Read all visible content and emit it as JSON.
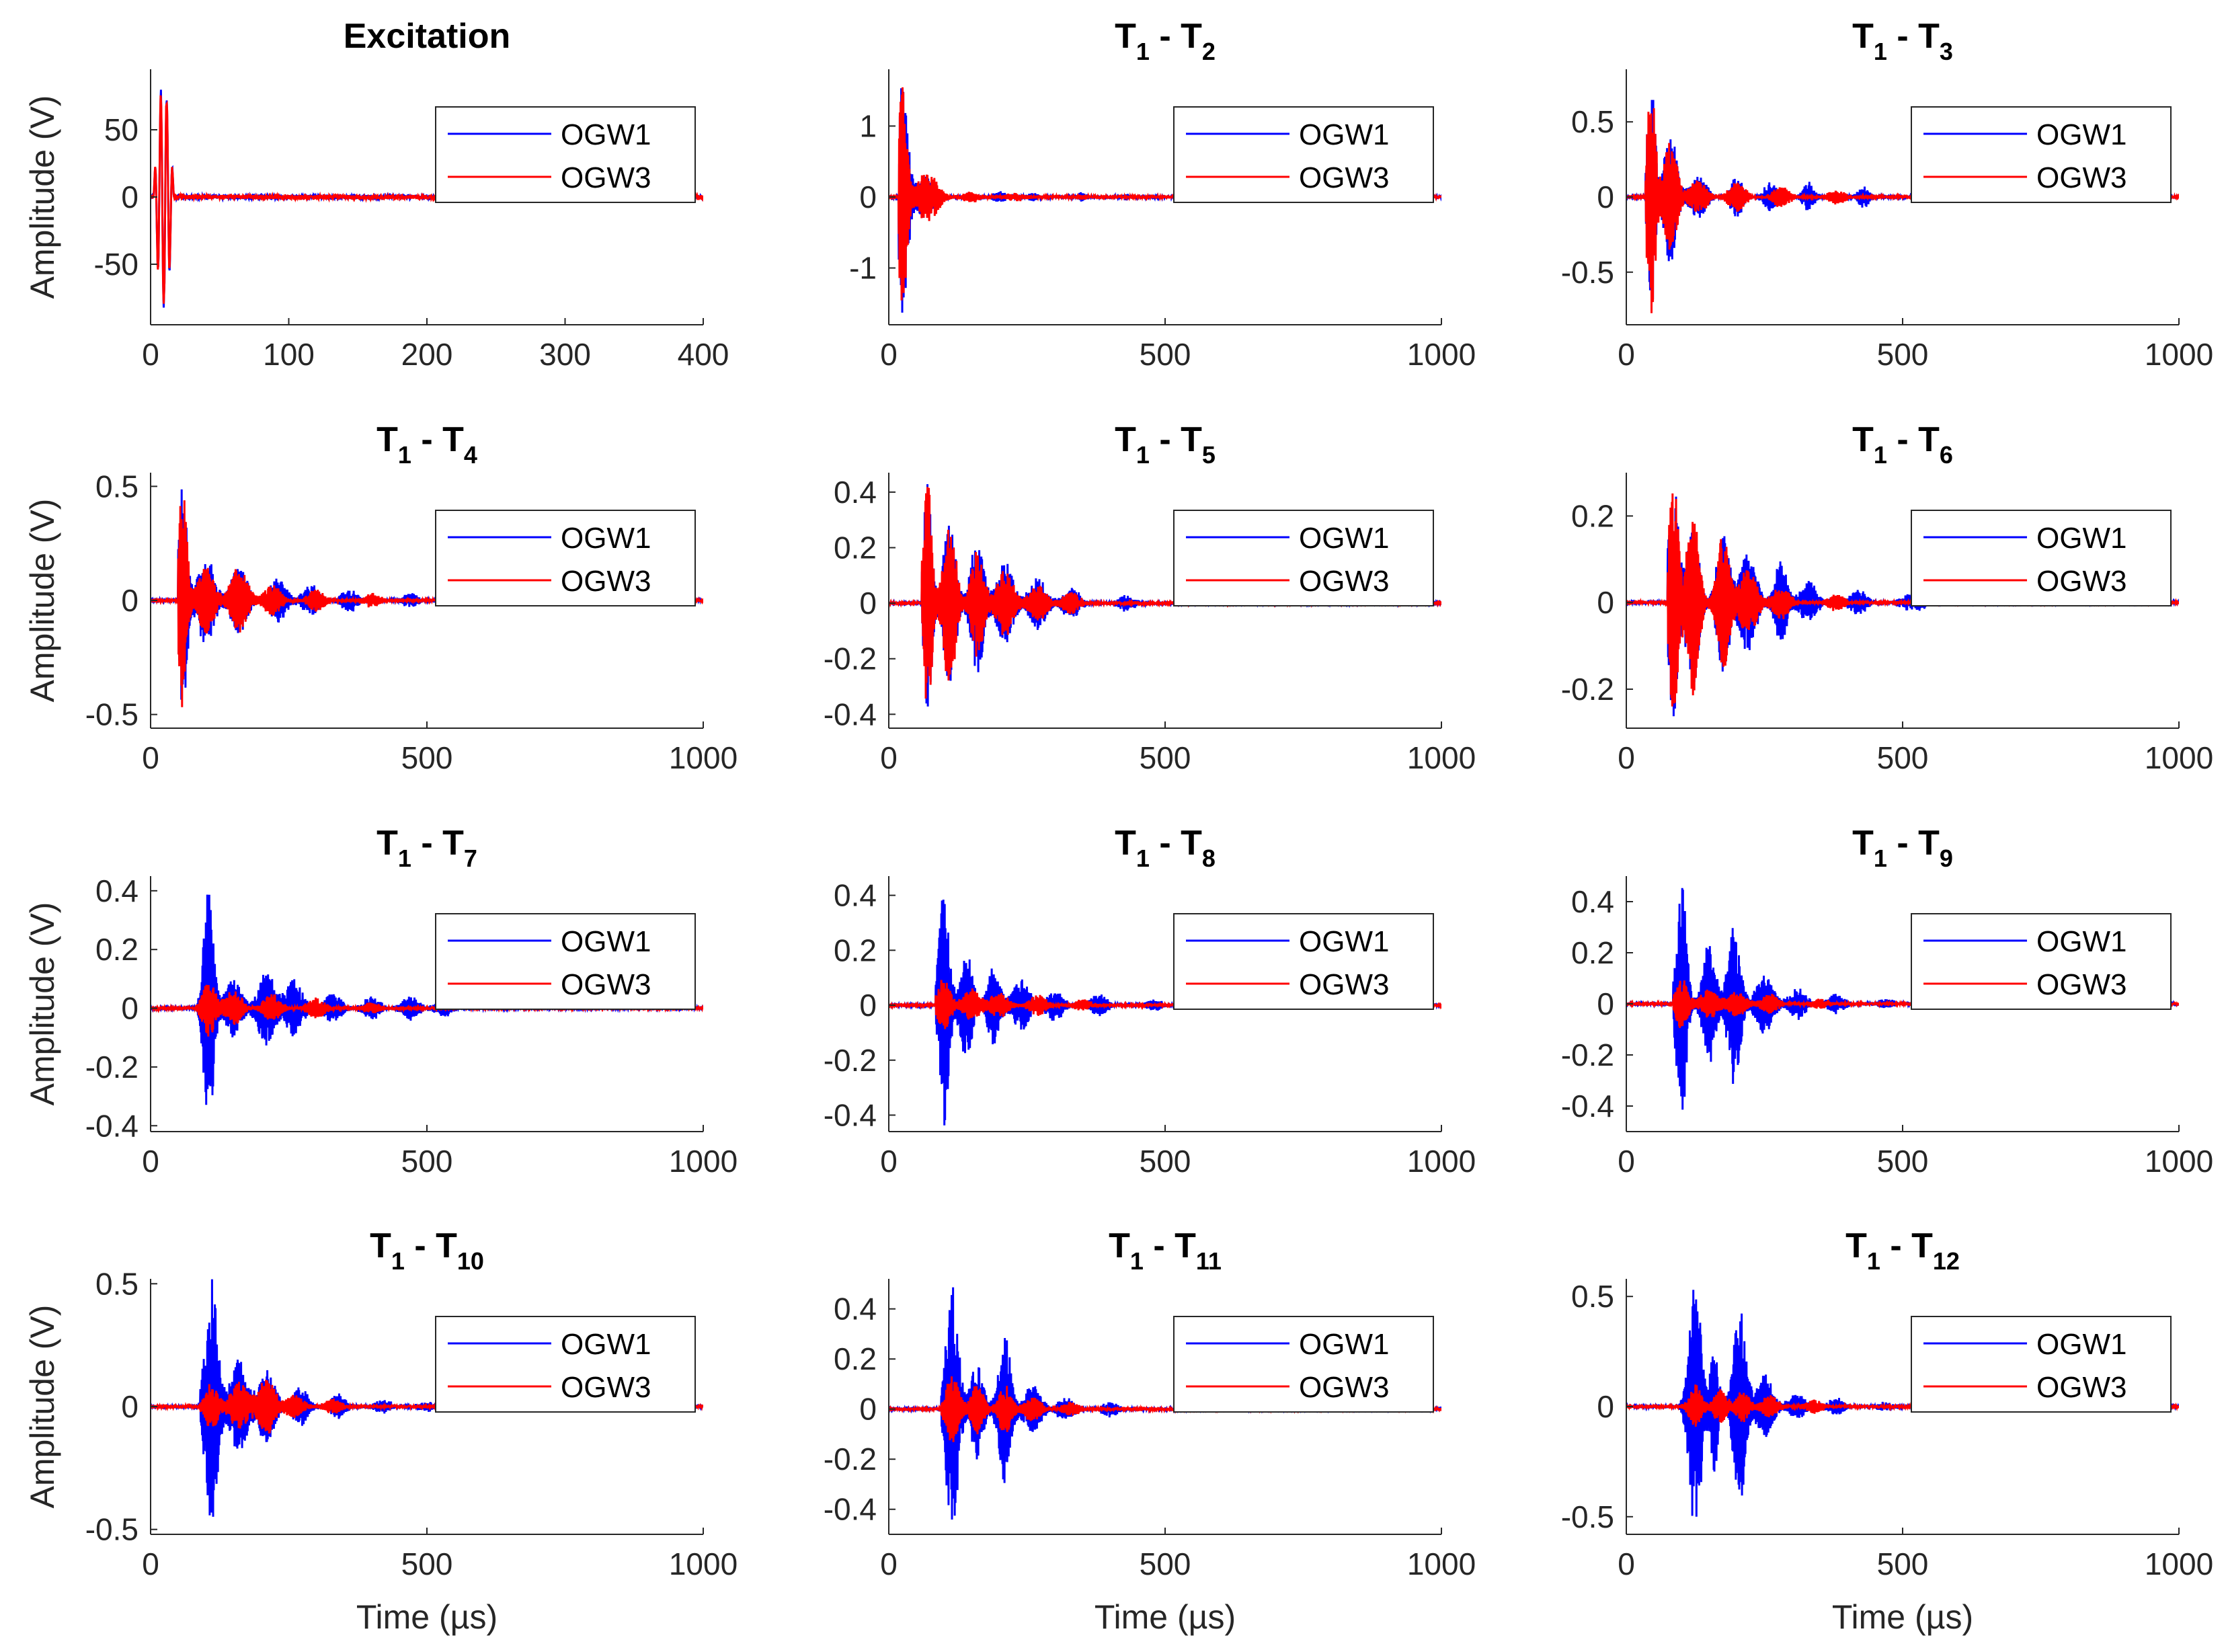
{
  "figure": {
    "rows": 4,
    "cols": 3,
    "ylabel": "Amplitude (V)",
    "xlabel": "Time (µs)",
    "legend": {
      "placement": "top-right",
      "entries": [
        "OGW1",
        "OGW3"
      ]
    },
    "colors": {
      "OGW1": "#0000ff",
      "OGW3": "#ff0000",
      "axes": "#262626"
    }
  },
  "chart_data": [
    {
      "type": "line",
      "title": "Excitation",
      "title_sub": "",
      "title_parts": [],
      "xlim": [
        0,
        400
      ],
      "ylim": [
        -95,
        95
      ],
      "xticks": [
        0,
        100,
        200,
        300,
        400
      ],
      "yticks": [
        50,
        0,
        -50
      ],
      "xtick_labels": [
        "0",
        "100",
        "200",
        "300",
        "400"
      ],
      "ytick_labels": [
        "50",
        "0",
        "-50"
      ],
      "envelope": {
        "kind": "excitation",
        "t0": 2,
        "dur": 15,
        "amp": 90,
        "noise": 1.5
      }
    },
    {
      "type": "line",
      "title": "",
      "title_parts": [
        "T",
        "1",
        " - T",
        "2"
      ],
      "xlim": [
        0,
        1000
      ],
      "ylim": [
        -1.8,
        1.8
      ],
      "xticks": [
        0,
        500,
        1000
      ],
      "yticks": [
        1,
        0,
        -1
      ],
      "xtick_labels": [
        "0",
        "500",
        "1000"
      ],
      "ytick_labels": [
        "1",
        "0",
        "-1"
      ],
      "envelope": {
        "t0": 18,
        "OGW1": [
          [
            25,
            1.65,
            12
          ],
          [
            65,
            0.3,
            25
          ],
          [
            200,
            0.08,
            15
          ],
          [
            260,
            0.06,
            12
          ],
          [
            350,
            0.06,
            10
          ],
          [
            430,
            0.04,
            15
          ]
        ],
        "OGW3": [
          [
            25,
            1.6,
            10
          ],
          [
            70,
            0.35,
            25
          ],
          [
            150,
            0.08,
            20
          ],
          [
            230,
            0.05,
            25
          ],
          [
            350,
            0.03,
            15
          ]
        ]
      }
    },
    {
      "type": "line",
      "title": "",
      "title_parts": [
        "T",
        "1",
        " - T",
        "3"
      ],
      "xlim": [
        0,
        1000
      ],
      "ylim": [
        -0.85,
        0.85
      ],
      "xticks": [
        0,
        500,
        1000
      ],
      "yticks": [
        0.5,
        0,
        -0.5
      ],
      "xtick_labels": [
        "0",
        "500",
        "1000"
      ],
      "ytick_labels": [
        "0.5",
        "0",
        "-0.5"
      ],
      "envelope": {
        "t0": 35,
        "OGW1": [
          [
            45,
            0.8,
            10
          ],
          [
            80,
            0.45,
            15
          ],
          [
            130,
            0.15,
            20
          ],
          [
            200,
            0.14,
            15
          ],
          [
            260,
            0.1,
            15
          ],
          [
            330,
            0.1,
            15
          ],
          [
            430,
            0.07,
            15
          ]
        ],
        "OGW3": [
          [
            45,
            0.8,
            10
          ],
          [
            80,
            0.4,
            15
          ],
          [
            130,
            0.12,
            20
          ],
          [
            200,
            0.1,
            20
          ],
          [
            280,
            0.07,
            20
          ],
          [
            380,
            0.05,
            20
          ]
        ]
      }
    },
    {
      "type": "line",
      "title": "",
      "title_parts": [
        "T",
        "1",
        " - T",
        "4"
      ],
      "xlim": [
        0,
        1000
      ],
      "ylim": [
        -0.56,
        0.56
      ],
      "xticks": [
        0,
        500,
        1000
      ],
      "yticks": [
        0.5,
        0,
        -0.5
      ],
      "xtick_labels": [
        "0",
        "500",
        "1000"
      ],
      "ytick_labels": [
        "0.5",
        "0",
        "-0.5"
      ],
      "envelope": {
        "t0": 50,
        "OGW1": [
          [
            58,
            0.55,
            10
          ],
          [
            100,
            0.2,
            20
          ],
          [
            160,
            0.15,
            20
          ],
          [
            230,
            0.1,
            20
          ],
          [
            290,
            0.07,
            20
          ],
          [
            360,
            0.05,
            20
          ],
          [
            470,
            0.03,
            20
          ]
        ],
        "OGW3": [
          [
            58,
            0.5,
            10
          ],
          [
            100,
            0.15,
            20
          ],
          [
            160,
            0.15,
            20
          ],
          [
            220,
            0.07,
            20
          ],
          [
            300,
            0.05,
            20
          ],
          [
            400,
            0.03,
            20
          ]
        ]
      }
    },
    {
      "type": "line",
      "title": "",
      "title_parts": [
        "T",
        "1",
        " - T",
        "5"
      ],
      "xlim": [
        0,
        1000
      ],
      "ylim": [
        -0.45,
        0.47
      ],
      "xticks": [
        0,
        500,
        1000
      ],
      "yticks": [
        0.4,
        0.2,
        0,
        -0.2,
        -0.4
      ],
      "xtick_labels": [
        "0",
        "500",
        "1000"
      ],
      "ytick_labels": [
        "0.4",
        "0.2",
        "0",
        "-0.2",
        "-0.4"
      ],
      "envelope": {
        "t0": 60,
        "OGW1": [
          [
            70,
            0.45,
            10
          ],
          [
            110,
            0.3,
            15
          ],
          [
            160,
            0.26,
            15
          ],
          [
            210,
            0.15,
            20
          ],
          [
            270,
            0.1,
            20
          ],
          [
            330,
            0.06,
            20
          ],
          [
            430,
            0.03,
            20
          ]
        ],
        "OGW3": [
          [
            70,
            0.46,
            10
          ],
          [
            110,
            0.3,
            15
          ],
          [
            160,
            0.2,
            15
          ],
          [
            210,
            0.12,
            20
          ],
          [
            270,
            0.07,
            20
          ],
          [
            330,
            0.04,
            20
          ]
        ]
      }
    },
    {
      "type": "line",
      "title": "",
      "title_parts": [
        "T",
        "1",
        " - T",
        "6"
      ],
      "xlim": [
        0,
        1000
      ],
      "ylim": [
        -0.29,
        0.3
      ],
      "xticks": [
        0,
        500,
        1000
      ],
      "yticks": [
        0.2,
        0,
        -0.2
      ],
      "xtick_labels": [
        "0",
        "500",
        "1000"
      ],
      "ytick_labels": [
        "0.2",
        "0",
        "-0.2"
      ],
      "envelope": {
        "t0": 75,
        "OGW1": [
          [
            85,
            0.29,
            12
          ],
          [
            120,
            0.2,
            15
          ],
          [
            175,
            0.17,
            15
          ],
          [
            220,
            0.12,
            20
          ],
          [
            280,
            0.1,
            15
          ],
          [
            330,
            0.05,
            20
          ],
          [
            420,
            0.03,
            20
          ],
          [
            520,
            0.02,
            30
          ]
        ],
        "OGW3": [
          [
            85,
            0.28,
            12
          ],
          [
            120,
            0.22,
            15
          ],
          [
            175,
            0.16,
            15
          ],
          [
            220,
            0.08,
            20
          ],
          [
            280,
            0.04,
            20
          ],
          [
            380,
            0.02,
            20
          ]
        ]
      }
    },
    {
      "type": "line",
      "title": "",
      "title_parts": [
        "T",
        "1",
        " - T",
        "7"
      ],
      "xlim": [
        0,
        1000
      ],
      "ylim": [
        -0.42,
        0.45
      ],
      "xticks": [
        0,
        500,
        1000
      ],
      "yticks": [
        0.4,
        0.2,
        0,
        -0.2,
        -0.4
      ],
      "xtick_labels": [
        "0",
        "500",
        "1000"
      ],
      "ytick_labels": [
        "0.4",
        "0.2",
        "0",
        "-0.2",
        "-0.4"
      ],
      "envelope": {
        "t0": 85,
        "OGW1": [
          [
            105,
            0.42,
            12
          ],
          [
            150,
            0.1,
            20
          ],
          [
            210,
            0.13,
            20
          ],
          [
            260,
            0.1,
            20
          ],
          [
            330,
            0.05,
            20
          ],
          [
            400,
            0.04,
            20
          ],
          [
            470,
            0.04,
            20
          ],
          [
            530,
            0.03,
            20
          ]
        ],
        "OGW3": [
          [
            105,
            0.1,
            15
          ],
          [
            150,
            0.06,
            20
          ],
          [
            220,
            0.05,
            20
          ],
          [
            300,
            0.04,
            20
          ],
          [
            400,
            0.02,
            20
          ]
        ]
      }
    },
    {
      "type": "line",
      "title": "",
      "title_parts": [
        "T",
        "1",
        " - T",
        "8"
      ],
      "xlim": [
        0,
        1000
      ],
      "ylim": [
        -0.46,
        0.47
      ],
      "xticks": [
        0,
        500,
        1000
      ],
      "yticks": [
        0.4,
        0.2,
        0,
        -0.2,
        -0.4
      ],
      "xtick_labels": [
        "0",
        "500",
        "1000"
      ],
      "ytick_labels": [
        "0.4",
        "0.2",
        "0",
        "-0.2",
        "-0.4"
      ],
      "envelope": {
        "t0": 85,
        "OGW1": [
          [
            100,
            0.45,
            12
          ],
          [
            140,
            0.2,
            15
          ],
          [
            190,
            0.15,
            15
          ],
          [
            240,
            0.1,
            20
          ],
          [
            300,
            0.06,
            20
          ],
          [
            380,
            0.04,
            20
          ],
          [
            480,
            0.02,
            20
          ]
        ],
        "OGW3": [
          [
            100,
            0.1,
            15
          ],
          [
            150,
            0.06,
            20
          ],
          [
            200,
            0.05,
            20
          ],
          [
            270,
            0.04,
            20
          ],
          [
            350,
            0.02,
            20
          ]
        ]
      }
    },
    {
      "type": "line",
      "title": "",
      "title_parts": [
        "T",
        "1",
        " - T",
        "9"
      ],
      "xlim": [
        0,
        1000
      ],
      "ylim": [
        -0.5,
        0.5
      ],
      "xticks": [
        0,
        500,
        1000
      ],
      "yticks": [
        0.4,
        0.2,
        0,
        -0.2,
        -0.4
      ],
      "xtick_labels": [
        "0",
        "500",
        "1000"
      ],
      "ytick_labels": [
        "0.4",
        "0.2",
        "0",
        "-0.2",
        "-0.4"
      ],
      "envelope": {
        "t0": 85,
        "OGW1": [
          [
            100,
            0.48,
            12
          ],
          [
            150,
            0.25,
            15
          ],
          [
            195,
            0.32,
            15
          ],
          [
            250,
            0.12,
            20
          ],
          [
            310,
            0.06,
            20
          ],
          [
            380,
            0.04,
            20
          ],
          [
            470,
            0.02,
            20
          ]
        ],
        "OGW3": [
          [
            100,
            0.1,
            15
          ],
          [
            150,
            0.06,
            20
          ],
          [
            200,
            0.05,
            20
          ],
          [
            260,
            0.04,
            20
          ],
          [
            350,
            0.02,
            20
          ]
        ]
      }
    },
    {
      "type": "line",
      "title": "",
      "title_parts": [
        "T",
        "1",
        " - T",
        "10"
      ],
      "xlim": [
        0,
        1000
      ],
      "ylim": [
        -0.52,
        0.52
      ],
      "xticks": [
        0,
        500,
        1000
      ],
      "yticks": [
        0.5,
        0,
        -0.5
      ],
      "xtick_labels": [
        "0",
        "500",
        "1000"
      ],
      "ytick_labels": [
        "0.5",
        "0",
        "-0.5"
      ],
      "envelope": {
        "t0": 90,
        "OGW1": [
          [
            110,
            0.52,
            15
          ],
          [
            160,
            0.2,
            20
          ],
          [
            210,
            0.15,
            20
          ],
          [
            270,
            0.08,
            20
          ],
          [
            340,
            0.05,
            20
          ],
          [
            420,
            0.03,
            20
          ],
          [
            500,
            0.02,
            20
          ]
        ],
        "OGW3": [
          [
            110,
            0.1,
            15
          ],
          [
            160,
            0.1,
            20
          ],
          [
            210,
            0.12,
            20
          ],
          [
            260,
            0.05,
            20
          ],
          [
            330,
            0.03,
            20
          ]
        ]
      }
    },
    {
      "type": "line",
      "title": "",
      "title_parts": [
        "T",
        "1",
        " - T",
        "11"
      ],
      "xlim": [
        0,
        1000
      ],
      "ylim": [
        -0.5,
        0.52
      ],
      "xticks": [
        0,
        500,
        1000
      ],
      "yticks": [
        0.4,
        0.2,
        0,
        -0.2,
        -0.4
      ],
      "xtick_labels": [
        "0",
        "500",
        "1000"
      ],
      "ytick_labels": [
        "0.4",
        "0.2",
        "0",
        "-0.2",
        "-0.4"
      ],
      "envelope": {
        "t0": 95,
        "OGW1": [
          [
            115,
            0.5,
            15
          ],
          [
            160,
            0.2,
            15
          ],
          [
            210,
            0.3,
            15
          ],
          [
            260,
            0.1,
            20
          ],
          [
            320,
            0.05,
            20
          ],
          [
            400,
            0.03,
            20
          ]
        ],
        "OGW3": [
          [
            115,
            0.15,
            15
          ],
          [
            160,
            0.1,
            15
          ],
          [
            210,
            0.1,
            15
          ],
          [
            260,
            0.05,
            20
          ],
          [
            330,
            0.03,
            20
          ]
        ]
      }
    },
    {
      "type": "line",
      "title": "",
      "title_parts": [
        "T",
        "1",
        " - T",
        "12"
      ],
      "xlim": [
        0,
        1000
      ],
      "ylim": [
        -0.58,
        0.58
      ],
      "xticks": [
        0,
        500,
        1000
      ],
      "yticks": [
        0.5,
        0,
        -0.5
      ],
      "xtick_labels": [
        "0",
        "500",
        "1000"
      ],
      "ytick_labels": [
        "0.5",
        "0",
        "-0.5"
      ],
      "envelope": {
        "t0": 95,
        "OGW1": [
          [
            125,
            0.58,
            15
          ],
          [
            160,
            0.3,
            10
          ],
          [
            205,
            0.45,
            15
          ],
          [
            250,
            0.15,
            20
          ],
          [
            310,
            0.06,
            20
          ],
          [
            380,
            0.04,
            20
          ],
          [
            470,
            0.02,
            20
          ]
        ],
        "OGW3": [
          [
            125,
            0.1,
            15
          ],
          [
            170,
            0.08,
            15
          ],
          [
            210,
            0.08,
            15
          ],
          [
            260,
            0.05,
            20
          ],
          [
            340,
            0.03,
            20
          ]
        ]
      }
    }
  ]
}
